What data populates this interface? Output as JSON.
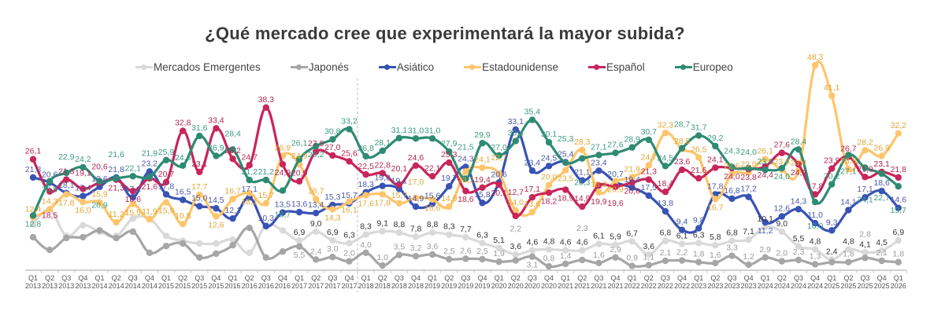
{
  "chart_data": {
    "type": "line",
    "title": "¿Qué mercado cree que experimentará la mayor subida?",
    "legend_position": "top",
    "grid": false,
    "ylim": [
      0,
      50
    ],
    "categories": [
      [
        "Q1",
        "2013"
      ],
      [
        "Q2",
        "2013"
      ],
      [
        "Q3",
        "2013"
      ],
      [
        "Q4",
        "2013"
      ],
      [
        "Q1",
        "2014"
      ],
      [
        "Q2",
        "2014"
      ],
      [
        "Q3",
        "2014"
      ],
      [
        "Q4",
        "2014"
      ],
      [
        "Q1",
        "2015"
      ],
      [
        "Q2",
        "2015"
      ],
      [
        "Q3",
        "2015"
      ],
      [
        "Q4",
        "2015"
      ],
      [
        "Q1",
        "2016"
      ],
      [
        "Q2",
        "2016"
      ],
      [
        "Q3",
        "2016"
      ],
      [
        "Q4",
        "2016"
      ],
      [
        "Q1",
        "2017"
      ],
      [
        "Q2",
        "2017"
      ],
      [
        "Q3",
        "2017"
      ],
      [
        "Q4",
        "2017"
      ],
      [
        "Q1",
        "2018"
      ],
      [
        "Q2",
        "2018"
      ],
      [
        "Q3",
        "2018"
      ],
      [
        "Q4",
        "2018"
      ],
      [
        "Q1",
        "2019"
      ],
      [
        "Q2",
        "2019"
      ],
      [
        "Q3",
        "2019"
      ],
      [
        "Q4",
        "2019"
      ],
      [
        "Q1",
        "2020"
      ],
      [
        "Q2",
        "2020"
      ],
      [
        "Q3",
        "2020"
      ],
      [
        "Q4",
        "2020"
      ],
      [
        "Q1",
        "2021"
      ],
      [
        "Q2",
        "2021"
      ],
      [
        "Q3",
        "2021"
      ],
      [
        "Q4",
        "2021"
      ],
      [
        "Q1",
        "2022"
      ],
      [
        "Q2",
        "2022"
      ],
      [
        "Q3",
        "2022"
      ],
      [
        "Q4",
        "2022"
      ],
      [
        "Q1",
        "2023"
      ],
      [
        "Q2",
        "2023"
      ],
      [
        "Q3",
        "2023"
      ],
      [
        "Q4",
        "2023"
      ],
      [
        "Q1",
        "2024"
      ],
      [
        "Q2",
        "2024"
      ],
      [
        "Q3",
        "2024"
      ],
      [
        "Q4",
        "2024"
      ],
      [
        "Q1",
        "2025"
      ],
      [
        "Q2",
        "2025"
      ],
      [
        "Q3",
        "2025"
      ],
      [
        "Q4",
        "2025"
      ],
      [
        "Q1",
        "2026"
      ]
    ],
    "divider_after": "Q4 2017",
    "series": [
      {
        "name": "Mercados Emergentes",
        "color": "#d9d9d9",
        "label_color": "#333333",
        "unlabeled": [
          0,
          1,
          2,
          3,
          4,
          5,
          6,
          7,
          8,
          9,
          10,
          11,
          12,
          13,
          14,
          15
        ],
        "values": [
          10.8,
          14.2,
          8.0,
          10.5,
          9.0,
          8.0,
          12.1,
          12.1,
          8.0,
          6.8,
          6.2,
          6.2,
          7.1,
          4.0,
          10.5,
          9.3,
          6.9,
          9.0,
          6.9,
          6.3,
          8.3,
          9.1,
          8.8,
          7.8,
          8.8,
          8.3,
          7.7,
          6.3,
          5.1,
          3.6,
          4.6,
          4.8,
          4.6,
          4.6,
          6.1,
          5.9,
          6.7,
          3.6,
          6.8,
          6.1,
          6.3,
          5.8,
          6.8,
          7.1,
          10.1,
          9.0,
          5.5,
          4.8,
          2.4,
          4.8,
          4.1,
          4.5,
          6.9
        ]
      },
      {
        "name": "Japonés",
        "color": "#a6a6a6",
        "label_color": "#9a9a9a",
        "unlabeled": [
          0,
          1,
          2,
          3,
          4,
          5,
          6,
          7,
          8,
          9,
          10,
          11,
          12,
          13,
          14,
          15,
          48
        ],
        "values": [
          7.7,
          4.7,
          7.5,
          7.7,
          9.3,
          7.5,
          9.0,
          4.0,
          5.6,
          6.2,
          2.9,
          3.8,
          5.8,
          9.9,
          2.9,
          4.3,
          5.5,
          2.4,
          3.0,
          2.0,
          4.0,
          1.0,
          3.5,
          3.2,
          3.6,
          2.5,
          2.6,
          2.5,
          1.9,
          2.2,
          3.1,
          0.8,
          1.4,
          2.3,
          1.6,
          2.9,
          0.9,
          1.1,
          2.1,
          2.2,
          1.8,
          1.6,
          3.3,
          1.2,
          2.9,
          2.0,
          2.3,
          1.3,
          1.8,
          1.8,
          2.8,
          2.1,
          1.8
        ]
      },
      {
        "name": "Asiático",
        "color": "#3853b5",
        "label_color": "#4a5aa8",
        "unlabeled": [],
        "values": [
          21.8,
          20.6,
          18.1,
          17.4,
          19.6,
          21.8,
          17.1,
          23.2,
          17.8,
          16.5,
          15.0,
          14.5,
          12.1,
          17.1,
          10.3,
          13.5,
          13.6,
          13.4,
          15.3,
          15.7,
          18.3,
          19.8,
          19.1,
          14.9,
          15.6,
          19.7,
          24.3,
          15.8,
          20.6,
          33.1,
          23.4,
          24.5,
          25.4,
          21.1,
          23.4,
          20.7,
          19.4,
          17.5,
          13.8,
          9.4,
          9.8,
          17.8,
          16.8,
          17.2,
          11.2,
          12.6,
          14.3,
          11.0,
          9.3,
          14.1,
          17.1,
          18.6,
          14.6
        ]
      },
      {
        "name": "Estadounidense",
        "color": "#ffc56b",
        "label_color": "#e0a735",
        "unlabeled": [],
        "values": [
          12.4,
          14.3,
          17.8,
          16.0,
          15.9,
          11.2,
          15.5,
          11.9,
          15.9,
          10.8,
          17.7,
          12.6,
          16.7,
          18.1,
          15.7,
          26.9,
          24.9,
          16.7,
          14.3,
          16.1,
          17.6,
          17.8,
          15.7,
          17.0,
          16.6,
          14.9,
          23.2,
          24.1,
          22.7,
          14.0,
          13.6,
          20.0,
          23.5,
          28.3,
          18.3,
          20.9,
          21.9,
          24.7,
          32.3,
          28.5,
          26.5,
          16.7,
          22.6,
          23.0,
          26.1,
          23.6,
          23.4,
          48.3,
          41.1,
          23.8,
          28.2,
          26.9,
          32.2
        ]
      },
      {
        "name": "Español",
        "color": "#c8265a",
        "label_color": "#b0284f",
        "unlabeled": [],
        "values": [
          26.1,
          18.5,
          21.3,
          19.1,
          20.6,
          21.3,
          18.6,
          21.6,
          20.7,
          32.8,
          23.1,
          33.4,
          26.2,
          24.7,
          38.3,
          24.9,
          20.9,
          27.9,
          27.0,
          25.6,
          22.5,
          22.8,
          20.1,
          24.6,
          22.1,
          25.3,
          18.6,
          19.4,
          20.1,
          12.7,
          17.1,
          18.2,
          18.9,
          14.9,
          19.9,
          19.6,
          20.6,
          21.3,
          18.4,
          23.6,
          21.6,
          24.1,
          24.0,
          23.8,
          24.4,
          27.6,
          24.9,
          17.8,
          23.9,
          26.7,
          21.9,
          23.1,
          21.8
        ]
      },
      {
        "name": "Europeo",
        "color": "#2e8b73",
        "label_color": "#3a9a80",
        "unlabeled": [],
        "values": [
          12.8,
          20.9,
          22.9,
          24.2,
          20.9,
          21.6,
          22.1,
          21.9,
          25.9,
          24.6,
          31.6,
          26.9,
          28.4,
          21.2,
          21.2,
          18.7,
          26.1,
          29.2,
          30.8,
          33.2,
          26.8,
          28.1,
          31.1,
          31.0,
          31.0,
          27.9,
          21.5,
          29.9,
          27.0,
          30.4,
          35.4,
          30.1,
          25.3,
          26.3,
          27.1,
          27.6,
          28.9,
          30.7,
          24.5,
          28.7,
          31.7,
          29.2,
          24.3,
          24.0,
          23.6,
          24.0,
          28.4,
          16.0,
          20.2,
          27.1,
          24.1,
          22.7,
          19.7
        ]
      }
    ]
  }
}
